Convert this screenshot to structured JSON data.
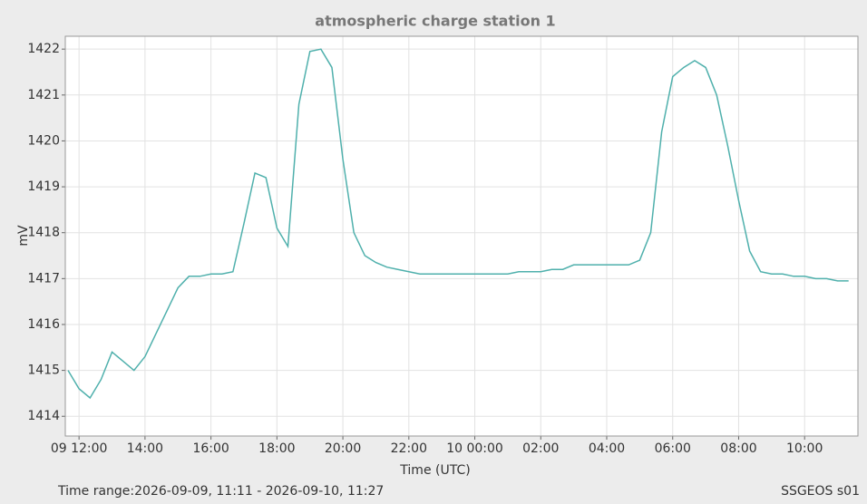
{
  "chart_data": {
    "type": "line",
    "title": "atmospheric charge station 1",
    "x_label": "Time (UTC)",
    "y_label": "mV",
    "xlim": [
      "2026-09-09T11:35",
      "2026-09-10T11:37"
    ],
    "xticks": [
      {
        "value": "2026-09-09T12:00",
        "label": "09 12:00"
      },
      {
        "value": "2026-09-09T14:00",
        "label": "14:00"
      },
      {
        "value": "2026-09-09T16:00",
        "label": "16:00"
      },
      {
        "value": "2026-09-09T18:00",
        "label": "18:00"
      },
      {
        "value": "2026-09-09T20:00",
        "label": "20:00"
      },
      {
        "value": "2026-09-09T22:00",
        "label": "22:00"
      },
      {
        "value": "2026-09-10T00:00",
        "label": "10 00:00"
      },
      {
        "value": "2026-09-10T02:00",
        "label": "02:00"
      },
      {
        "value": "2026-09-10T04:00",
        "label": "04:00"
      },
      {
        "value": "2026-09-10T06:00",
        "label": "06:00"
      },
      {
        "value": "2026-09-10T08:00",
        "label": "08:00"
      },
      {
        "value": "2026-09-10T10:00",
        "label": "10:00"
      }
    ],
    "ylim": [
      1413.57,
      1422.28
    ],
    "yticks": [
      1414,
      1415,
      1416,
      1417,
      1418,
      1419,
      1420,
      1421,
      1422
    ],
    "grid": true,
    "series": [
      {
        "color": "#4fb0ac",
        "x": [
          "2026-09-09T11:40",
          "2026-09-09T12:00",
          "2026-09-09T12:20",
          "2026-09-09T12:40",
          "2026-09-09T13:00",
          "2026-09-09T13:20",
          "2026-09-09T13:40",
          "2026-09-09T14:00",
          "2026-09-09T14:20",
          "2026-09-09T14:40",
          "2026-09-09T15:00",
          "2026-09-09T15:20",
          "2026-09-09T15:40",
          "2026-09-09T16:00",
          "2026-09-09T16:20",
          "2026-09-09T16:40",
          "2026-09-09T17:00",
          "2026-09-09T17:20",
          "2026-09-09T17:40",
          "2026-09-09T18:00",
          "2026-09-09T18:20",
          "2026-09-09T18:40",
          "2026-09-09T19:00",
          "2026-09-09T19:20",
          "2026-09-09T19:40",
          "2026-09-09T20:00",
          "2026-09-09T20:20",
          "2026-09-09T20:40",
          "2026-09-09T21:00",
          "2026-09-09T21:20",
          "2026-09-09T21:40",
          "2026-09-09T22:00",
          "2026-09-09T22:20",
          "2026-09-09T22:40",
          "2026-09-09T23:00",
          "2026-09-09T23:20",
          "2026-09-09T23:40",
          "2026-09-10T00:00",
          "2026-09-10T00:20",
          "2026-09-10T00:40",
          "2026-09-10T01:00",
          "2026-09-10T01:20",
          "2026-09-10T01:40",
          "2026-09-10T02:00",
          "2026-09-10T02:20",
          "2026-09-10T02:40",
          "2026-09-10T03:00",
          "2026-09-10T03:20",
          "2026-09-10T03:40",
          "2026-09-10T04:00",
          "2026-09-10T04:20",
          "2026-09-10T04:40",
          "2026-09-10T05:00",
          "2026-09-10T05:20",
          "2026-09-10T05:40",
          "2026-09-10T06:00",
          "2026-09-10T06:20",
          "2026-09-10T06:40",
          "2026-09-10T07:00",
          "2026-09-10T07:20",
          "2026-09-10T07:40",
          "2026-09-10T08:00",
          "2026-09-10T08:20",
          "2026-09-10T08:40",
          "2026-09-10T09:00",
          "2026-09-10T09:20",
          "2026-09-10T09:40",
          "2026-09-10T10:00",
          "2026-09-10T10:20",
          "2026-09-10T10:40",
          "2026-09-10T11:00",
          "2026-09-10T11:20"
        ],
        "values": [
          1415.0,
          1414.6,
          1414.4,
          1414.8,
          1415.4,
          1415.2,
          1415.0,
          1415.3,
          1415.8,
          1416.3,
          1416.8,
          1417.05,
          1417.05,
          1417.1,
          1417.1,
          1417.15,
          1418.2,
          1419.3,
          1419.2,
          1418.1,
          1417.7,
          1420.8,
          1421.95,
          1422.0,
          1421.6,
          1419.6,
          1418.0,
          1417.5,
          1417.35,
          1417.25,
          1417.2,
          1417.15,
          1417.1,
          1417.1,
          1417.1,
          1417.1,
          1417.1,
          1417.1,
          1417.1,
          1417.1,
          1417.1,
          1417.15,
          1417.15,
          1417.15,
          1417.2,
          1417.2,
          1417.3,
          1417.3,
          1417.3,
          1417.3,
          1417.3,
          1417.3,
          1417.4,
          1418.0,
          1420.2,
          1421.4,
          1421.6,
          1421.75,
          1421.6,
          1421.0,
          1419.9,
          1418.7,
          1417.6,
          1417.15,
          1417.1,
          1417.1,
          1417.05,
          1417.05,
          1417.0,
          1417.0,
          1416.95,
          1416.95
        ]
      }
    ]
  },
  "footer": {
    "time_range": "Time range:2026-09-09, 11:11 - 2026-09-10, 11:27",
    "source": "SSGEOS s01"
  }
}
